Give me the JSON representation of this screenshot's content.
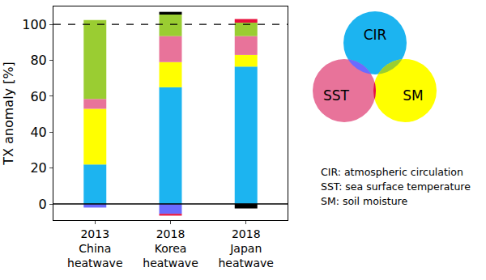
{
  "chart_data": {
    "type": "bar",
    "stacked": true,
    "y_label": "TX anomaly [%]",
    "categories": [
      "2013\nChina\nheatwave",
      "2018\nKorea\nheatwave",
      "2018\nJapan\nheatwave"
    ],
    "series": [
      {
        "name": "CIR",
        "color": "#1cb4f0",
        "values": [
          22,
          65,
          76.5
        ]
      },
      {
        "name": "SM",
        "color": "#ffff00",
        "values": [
          31,
          14,
          6.5
        ]
      },
      {
        "name": "SST",
        "color": "#e8739a",
        "values": [
          5.5,
          14.5,
          10.5
        ]
      },
      {
        "color": "#6b6bff",
        "values": [
          -2,
          -5.5,
          0
        ]
      },
      {
        "color": "#9acd32",
        "values": [
          44,
          12,
          7.5
        ]
      },
      {
        "color": "#e8103c",
        "values": [
          0,
          -1,
          2
        ]
      },
      {
        "color": "#000000",
        "values": [
          0,
          1.5,
          -2.5
        ]
      }
    ],
    "ylim": [
      -9,
      110
    ],
    "yticks": [
      0,
      20,
      40,
      60,
      80,
      100
    ],
    "reference_lines": [
      {
        "y": 100,
        "line_style": "dashed"
      },
      {
        "y": 0,
        "line_style": "solid"
      }
    ],
    "annotations": [
      "CIR: atmospheric circulation",
      "SST: sea surface temperature",
      "SM: soil moisture"
    ]
  }
}
